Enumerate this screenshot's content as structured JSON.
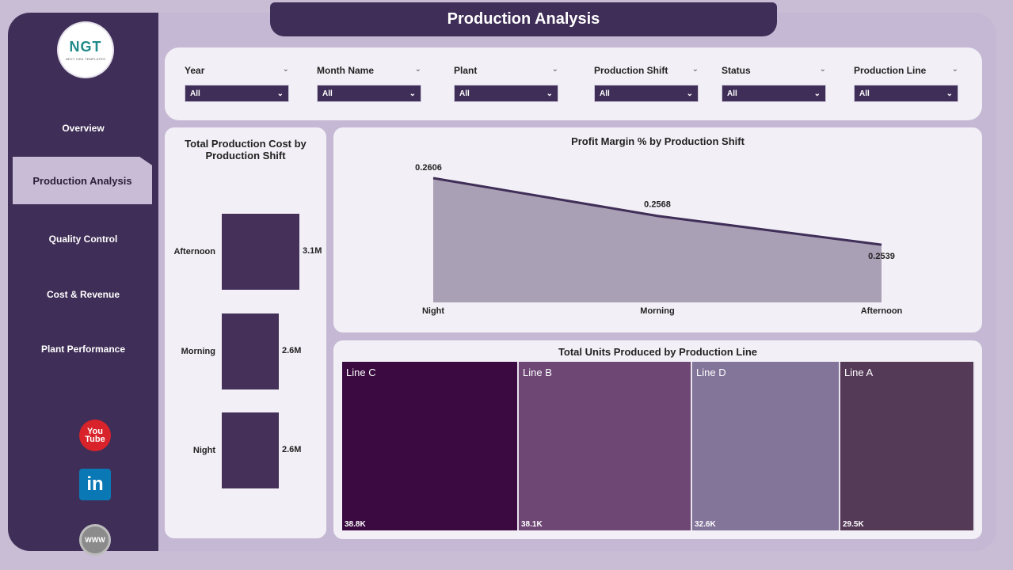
{
  "header": {
    "title": "Production Analysis"
  },
  "logo": {
    "text": "NGT",
    "subtext": "NEXT GEN TEMPLATES"
  },
  "sidebar": {
    "items": [
      {
        "label": "Overview",
        "active": false
      },
      {
        "label": "Production Analysis",
        "active": true
      },
      {
        "label": "Quality Control",
        "active": false
      },
      {
        "label": "Cost & Revenue",
        "active": false
      },
      {
        "label": "Plant Performance",
        "active": false
      }
    ],
    "social": {
      "youtube_top": "You",
      "youtube_bottom": "Tube",
      "linkedin": "in",
      "website": "WWW"
    }
  },
  "filters": [
    {
      "label": "Year",
      "value": "All"
    },
    {
      "label": "Month Name",
      "value": "All"
    },
    {
      "label": "Plant",
      "value": "All"
    },
    {
      "label": "Production Shift",
      "value": "All"
    },
    {
      "label": "Status",
      "value": "All"
    },
    {
      "label": "Production Line",
      "value": "All"
    }
  ],
  "cost_chart": {
    "title_line1": "Total Production Cost by",
    "title_line2": "Production Shift"
  },
  "profit_chart": {
    "title": "Profit Margin % by Production Shift"
  },
  "units_chart": {
    "title": "Total Units Produced by Production Line"
  },
  "colors": {
    "sidebar": "#3f2e57",
    "accent_bar": "#45305a",
    "area_fill": "#aaa0b5",
    "line": "#3f2e57",
    "treemap": [
      "#3a0a40",
      "#6e4775",
      "#83749a",
      "#553a58"
    ]
  },
  "chart_data": [
    {
      "type": "bar",
      "orientation": "horizontal",
      "title": "Total Production Cost by Production Shift",
      "categories": [
        "Afternoon",
        "Morning",
        "Night"
      ],
      "values": [
        3.1,
        2.6,
        2.6
      ],
      "value_labels": [
        "3.1M",
        "2.6M",
        "2.6M"
      ],
      "unit": "M"
    },
    {
      "type": "area",
      "title": "Profit Margin % by Production Shift",
      "categories": [
        "Night",
        "Morning",
        "Afternoon"
      ],
      "values": [
        0.2606,
        0.2568,
        0.2539
      ],
      "value_labels": [
        "0.2606",
        "0.2568",
        "0.2539"
      ]
    },
    {
      "type": "treemap",
      "title": "Total Units Produced by Production Line",
      "categories": [
        "Line C",
        "Line B",
        "Line D",
        "Line A"
      ],
      "values": [
        38.8,
        38.1,
        32.6,
        29.5
      ],
      "value_labels": [
        "38.8K",
        "38.1K",
        "32.6K",
        "29.5K"
      ],
      "unit": "K"
    }
  ]
}
